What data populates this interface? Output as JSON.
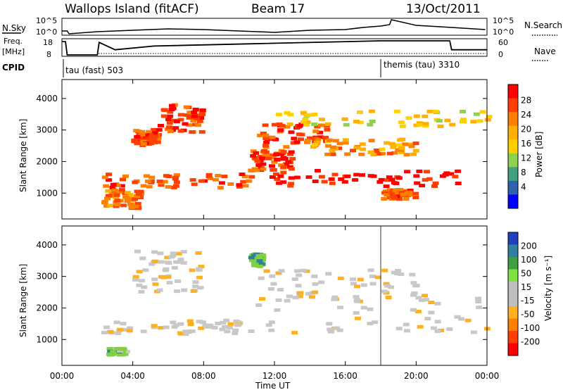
{
  "header": {
    "station": "Wallops Island (fitACF)",
    "beam": "Beam 17",
    "date": "13/Oct/2011"
  },
  "nsky_panel": {
    "left_label": "N.Sky",
    "right_label": "N.Search",
    "left_ticks": [
      "10^5",
      "10^0"
    ],
    "right_ticks": [
      "10^5",
      "10^0"
    ]
  },
  "freq_panel": {
    "left_label_1": "Freq.",
    "left_label_2": "[MHz]",
    "right_label": "Nave",
    "left_ticks": [
      "18",
      "8"
    ],
    "right_ticks": [
      "60",
      "0"
    ]
  },
  "cpid_panel": {
    "label": "CPID",
    "modes": [
      {
        "name": "tau (fast) 503",
        "start_hour": 0
      },
      {
        "name": "themis (tau) 3310",
        "start_hour": 18
      }
    ]
  },
  "power_colorbar": {
    "label": "Power [dB]",
    "ticks": [
      "28",
      "24",
      "20",
      "16",
      "12",
      "8",
      "4"
    ],
    "colors": [
      "#ff0000",
      "#ff4000",
      "#ff8000",
      "#ffb000",
      "#ffd000",
      "#90d050",
      "#40a080",
      "#3060b0",
      "#0000ff"
    ]
  },
  "velocity_colorbar": {
    "label": "Velocity [m s⁻¹]",
    "ticks": [
      "200",
      "100",
      "50",
      "15",
      "-15",
      "-50",
      "-100",
      "-200"
    ],
    "colors": [
      "#2040c0",
      "#3080a0",
      "#40a040",
      "#80e040",
      "#c0c0c0",
      "#c0c0c0",
      "#ffb020",
      "#ff8000",
      "#ff4000",
      "#ff0000"
    ]
  },
  "axes": {
    "ylabel": "Slant Range [km]",
    "xlabel": "Time UT",
    "xticks": [
      "00:00",
      "04:00",
      "08:00",
      "12:00",
      "16:00",
      "20:00",
      "00:00"
    ],
    "yticks": [
      "1000",
      "2000",
      "3000",
      "4000"
    ]
  },
  "chart_data": {
    "type": "heatmap",
    "title": "Wallops Island (fitACF)  Beam 17  13/Oct/2011",
    "xlabel": "Time UT",
    "ylabel": "Slant Range [km]",
    "xlim_hours": [
      0,
      24
    ],
    "ylim_km": [
      180,
      4600
    ],
    "panels": [
      {
        "name": "Power [dB]",
        "range": [
          0,
          30
        ],
        "echo_bands": [
          {
            "t_start": 3.9,
            "t_end": 5.3,
            "r_low": 2500,
            "r_high": 3000,
            "value": 24
          },
          {
            "t_start": 5.3,
            "t_end": 7.8,
            "r_low": 2900,
            "r_high": 3800,
            "value": 25
          },
          {
            "t_start": 2.2,
            "t_end": 10.7,
            "r_low": 1150,
            "r_high": 1600,
            "value": 24
          },
          {
            "t_start": 2.2,
            "t_end": 4.3,
            "r_low": 500,
            "r_high": 1100,
            "value": 22
          },
          {
            "t_start": 10.5,
            "t_end": 13.0,
            "r_low": 1700,
            "r_high": 2400,
            "value": 26
          },
          {
            "t_start": 11.5,
            "t_end": 22.5,
            "r_low": 1200,
            "r_high": 1700,
            "value": 28
          },
          {
            "t_start": 11.0,
            "t_end": 15.0,
            "r_low": 2400,
            "r_high": 3200,
            "value": 26
          },
          {
            "t_start": 14.0,
            "t_end": 20.0,
            "r_low": 2200,
            "r_high": 2700,
            "value": 20
          },
          {
            "t_start": 18.0,
            "t_end": 19.8,
            "r_low": 800,
            "r_high": 1100,
            "value": 24
          },
          {
            "t_start": 12.0,
            "t_end": 24.0,
            "r_low": 3100,
            "r_high": 3600,
            "value": 16
          }
        ]
      },
      {
        "name": "Velocity [m s-1]",
        "range": [
          -200,
          200
        ],
        "echo_bands": [
          {
            "t_start": 3.9,
            "t_end": 7.8,
            "r_low": 2500,
            "r_high": 3800,
            "value": 0
          },
          {
            "t_start": 2.2,
            "t_end": 10.7,
            "r_low": 1150,
            "r_high": 1600,
            "value": 0
          },
          {
            "t_start": 2.5,
            "t_end": 3.5,
            "r_low": 500,
            "r_high": 700,
            "value": 50
          },
          {
            "t_start": 10.5,
            "t_end": 24.0,
            "r_low": 1200,
            "r_high": 2400,
            "value": 0
          },
          {
            "t_start": 11.0,
            "t_end": 20.0,
            "r_low": 2200,
            "r_high": 3200,
            "value": 0
          },
          {
            "t_start": 10.5,
            "t_end": 11.2,
            "r_low": 3300,
            "r_high": 3700,
            "value": 60
          }
        ]
      }
    ],
    "n_search_trace": {
      "x_hours": [
        0,
        0.3,
        0.4,
        2.0,
        4,
        6,
        8,
        10,
        12,
        14,
        16,
        17,
        18,
        18.5,
        18.6,
        20,
        22,
        23.9
      ],
      "level": [
        0.2,
        0.2,
        0.0,
        0.15,
        0.25,
        0.35,
        0.3,
        0.2,
        0.1,
        0.25,
        0.3,
        0.45,
        0.55,
        0.65,
        1.0,
        0.6,
        0.45,
        0.3
      ]
    },
    "freq_trace": {
      "x_hours": [
        0,
        0.2,
        0.3,
        2.0,
        2.1,
        3.0,
        5.2,
        10.5,
        18.0,
        21.9,
        22.0,
        24.0
      ],
      "level": [
        0.9,
        0.9,
        0.0,
        0.0,
        0.85,
        0.35,
        0.6,
        0.75,
        0.95,
        0.95,
        0.35,
        0.35
      ]
    }
  }
}
